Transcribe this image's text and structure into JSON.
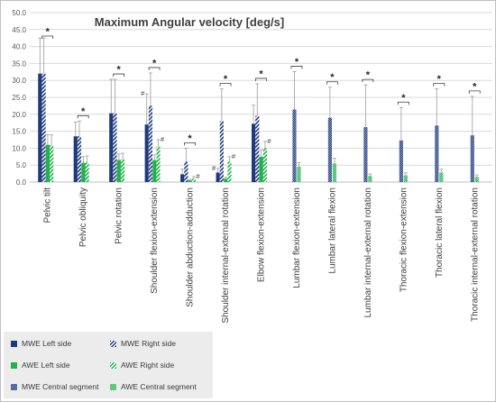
{
  "chart_data": {
    "type": "bar",
    "title": "Maximum Angular velocity [deg/s]",
    "ylim": [
      0,
      50
    ],
    "yticks": [
      "0.0",
      "5.0",
      "10.0",
      "15.0",
      "20.0",
      "25.0",
      "30.0",
      "35.0",
      "40.0",
      "45.0",
      "50.0"
    ],
    "grid": true,
    "legend_position": "bottom-left",
    "categories": [
      "Pelvic tilt",
      "Pelvic obliquity",
      "Pelvic rotation",
      "Shoulder flexion-extension",
      "Shoulder abduction-adduction",
      "Shoulder internal-external rotation",
      "Elbow flexion-extension",
      "Lumbar flexion-extension",
      "Lumbar lateral flexion",
      "Lumbar internal-external rotation",
      "Thoracic flexion-extension",
      "Thoracic lateral flexion",
      "Thoracic internal-external rotation"
    ],
    "series": [
      {
        "name": "MWE Left side",
        "color": "#1f3a7a",
        "pattern": "solid",
        "values": [
          32.0,
          13.5,
          20.3,
          17.0,
          2.3,
          2.8,
          17.2,
          null,
          null,
          null,
          null,
          null,
          null
        ],
        "errors": [
          10.5,
          4.2,
          10.0,
          9.0,
          1.5,
          1.2,
          5.5,
          null,
          null,
          null,
          null,
          null,
          null
        ]
      },
      {
        "name": "MWE Right side",
        "color": "#1f3a7a",
        "pattern": "diagonal",
        "values": [
          32.0,
          13.5,
          20.3,
          22.5,
          6.0,
          18.0,
          19.5,
          null,
          null,
          null,
          null,
          null,
          null
        ],
        "errors": [
          10.5,
          4.5,
          10.0,
          9.7,
          4.0,
          9.5,
          9.5,
          null,
          null,
          null,
          null,
          null,
          null
        ]
      },
      {
        "name": "AWE Left side",
        "color": "#22b14c",
        "pattern": "solid",
        "values": [
          11.0,
          5.7,
          6.5,
          6.5,
          0.5,
          1.0,
          7.5,
          null,
          null,
          null,
          null,
          null,
          null
        ],
        "errors": [
          3.0,
          1.8,
          1.8,
          1.5,
          0.3,
          0.4,
          2.0,
          null,
          null,
          null,
          null,
          null,
          null
        ]
      },
      {
        "name": "AWE Right side",
        "color": "#22b14c",
        "pattern": "diagonal",
        "values": [
          10.8,
          5.7,
          6.7,
          10.5,
          1.0,
          6.0,
          10.0,
          null,
          null,
          null,
          null,
          null,
          null
        ],
        "errors": [
          3.2,
          2.0,
          1.8,
          2.0,
          0.6,
          1.5,
          2.0,
          null,
          null,
          null,
          null,
          null,
          null
        ]
      },
      {
        "name": "MWE Central segment",
        "color": "#1f3a7a",
        "pattern": "checker",
        "values": [
          null,
          null,
          null,
          null,
          null,
          null,
          null,
          21.4,
          19.0,
          16.2,
          12.3,
          16.7,
          13.8
        ],
        "errors": [
          null,
          null,
          null,
          null,
          null,
          null,
          null,
          11.2,
          9.0,
          12.5,
          9.7,
          10.8,
          11.5
        ]
      },
      {
        "name": "AWE Central segment",
        "color": "#22b14c",
        "pattern": "checker",
        "values": [
          null,
          null,
          null,
          null,
          null,
          null,
          null,
          4.5,
          5.5,
          1.8,
          2.0,
          2.8,
          1.5
        ],
        "errors": [
          null,
          null,
          null,
          null,
          null,
          null,
          null,
          1.2,
          1.5,
          0.6,
          0.7,
          1.0,
          0.6
        ]
      }
    ],
    "significance_markers": [
      "*",
      "*",
      "*",
      "*",
      "*",
      "*",
      "*",
      "*",
      "*",
      "*",
      "*",
      "*",
      "*"
    ],
    "hash_annotations": [
      {
        "category": "Shoulder flexion-extension",
        "labels": [
          "#",
          "#"
        ]
      },
      {
        "category": "Shoulder abduction-adduction",
        "labels": [
          "#"
        ]
      },
      {
        "category": "Shoulder internal-external rotation",
        "labels": [
          "#",
          "#"
        ]
      },
      {
        "category": "Elbow flexion-extension",
        "labels": [
          "#"
        ]
      }
    ]
  },
  "legend": {
    "items": [
      {
        "label": "MWE Left side",
        "color": "#1f3a7a",
        "pattern": "solid"
      },
      {
        "label": "MWE Right side",
        "color": "#1f3a7a",
        "pattern": "diagonal"
      },
      {
        "label": "AWE Left side",
        "color": "#22b14c",
        "pattern": "solid"
      },
      {
        "label": "AWE Right side",
        "color": "#22b14c",
        "pattern": "diagonal"
      },
      {
        "label": "MWE Central segment",
        "color": "#1f3a7a",
        "pattern": "checker"
      },
      {
        "label": "AWE Central segment",
        "color": "#22b14c",
        "pattern": "checker"
      }
    ]
  }
}
